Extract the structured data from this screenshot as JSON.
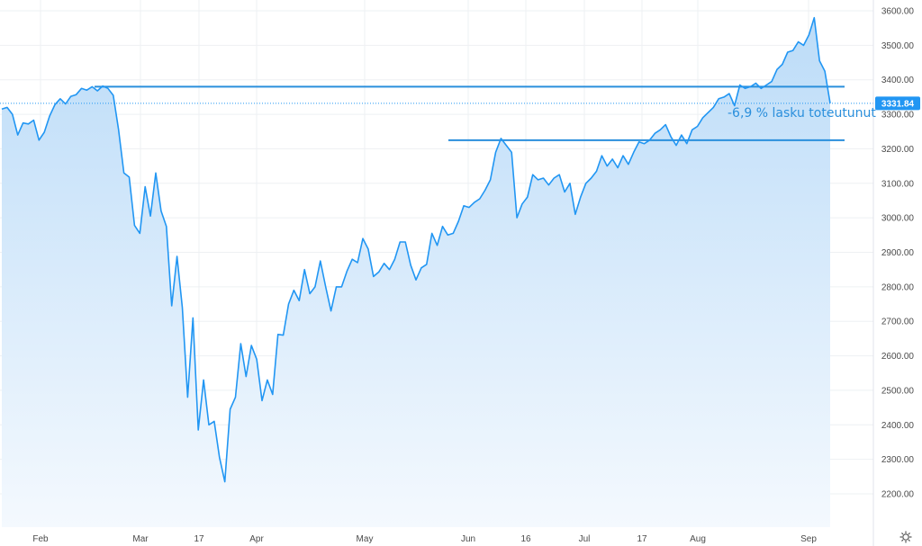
{
  "chart_data": {
    "type": "area",
    "x_tick_labels": [
      "Feb",
      "Mar",
      "17",
      "Apr",
      "May",
      "Jun",
      "16",
      "Jul",
      "17",
      "Aug",
      "Sep"
    ],
    "y_tick_labels": [
      "2200.00",
      "2300.00",
      "2400.00",
      "2500.00",
      "2600.00",
      "2700.00",
      "2800.00",
      "2900.00",
      "3000.00",
      "3100.00",
      "3200.00",
      "3300.00",
      "3400.00",
      "3500.00",
      "3600.00"
    ],
    "ylim": [
      2155,
      3640
    ],
    "grid": true,
    "last_price_label": "3331.84",
    "annotation": "-6,9 % lasku toteutunut",
    "horizontal_levels": [
      3380,
      3225
    ],
    "colors": {
      "line": "#2196f3",
      "level_line": "#2a8fdc",
      "annotation": "#2a8fdc",
      "area_top": "#bcdcf8",
      "area_bottom": "#f4f9fe",
      "grid": "#eef0f3",
      "price_tag": "#2196f3"
    },
    "icons": {
      "settings": "settings-gear-icon"
    },
    "series": [
      {
        "values": [
          3315,
          3320,
          3300,
          3240,
          3275,
          3272,
          3283,
          3225,
          3248,
          3295,
          3328,
          3345,
          3330,
          3352,
          3357,
          3375,
          3370,
          3380,
          3368,
          3382,
          3375,
          3355,
          3255,
          3130,
          3118,
          2978,
          2955,
          3090,
          3005,
          3130,
          3020,
          2975,
          2745,
          2888,
          2740,
          2480,
          2710,
          2385,
          2530,
          2400,
          2410,
          2305,
          2235,
          2445,
          2480,
          2635,
          2540,
          2630,
          2590,
          2470,
          2530,
          2488,
          2662,
          2660,
          2750,
          2790,
          2760,
          2850,
          2780,
          2800,
          2875,
          2800,
          2730,
          2800,
          2800,
          2845,
          2880,
          2870,
          2940,
          2910,
          2830,
          2843,
          2868,
          2850,
          2880,
          2930,
          2930,
          2863,
          2820,
          2855,
          2865,
          2955,
          2920,
          2975,
          2950,
          2955,
          2990,
          3035,
          3030,
          3045,
          3055,
          3080,
          3110,
          3190,
          3230,
          3210,
          3190,
          3000,
          3040,
          3060,
          3125,
          3110,
          3115,
          3095,
          3115,
          3125,
          3075,
          3100,
          3010,
          3060,
          3100,
          3115,
          3135,
          3180,
          3150,
          3170,
          3145,
          3180,
          3155,
          3190,
          3220,
          3215,
          3225,
          3245,
          3255,
          3270,
          3235,
          3210,
          3240,
          3215,
          3255,
          3265,
          3290,
          3305,
          3320,
          3345,
          3350,
          3360,
          3325,
          3385,
          3375,
          3380,
          3390,
          3375,
          3385,
          3395,
          3430,
          3445,
          3480,
          3485,
          3510,
          3500,
          3530,
          3580,
          3455,
          3425,
          3331.84
        ]
      }
    ]
  }
}
